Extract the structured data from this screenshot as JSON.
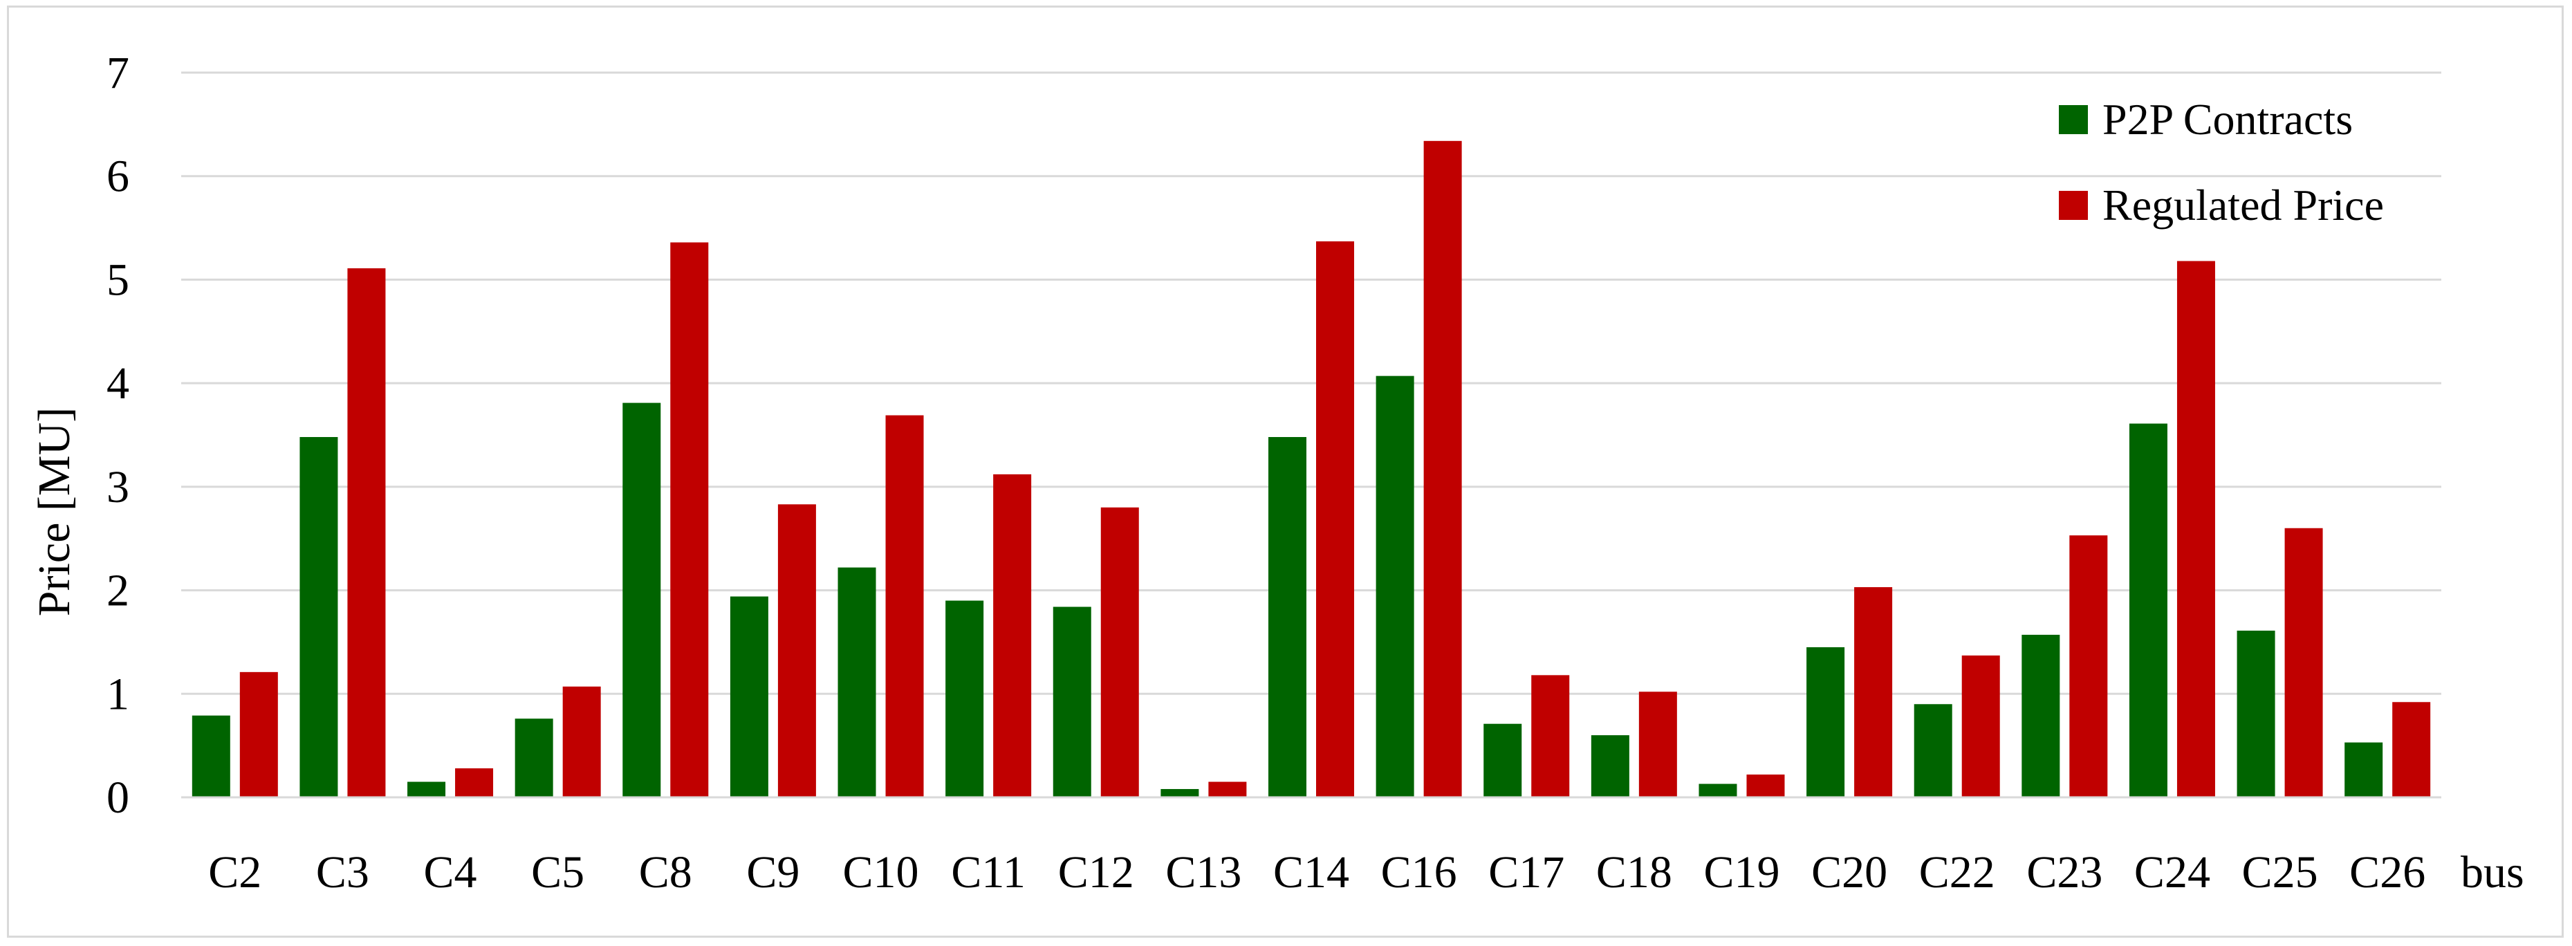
{
  "chart_data": {
    "type": "bar",
    "title": "",
    "xlabel": "bus",
    "ylabel": "Price [MU]",
    "ylim": [
      0,
      7
    ],
    "yticks": [
      "0",
      "1",
      "2",
      "3",
      "4",
      "5",
      "6",
      "7"
    ],
    "grid": "horizontal",
    "legend_position": "top-right",
    "categories": [
      "C2",
      "C3",
      "C4",
      "C5",
      "C8",
      "C9",
      "C10",
      "C11",
      "C12",
      "C13",
      "C14",
      "C16",
      "C17",
      "C18",
      "C19",
      "C20",
      "C22",
      "C23",
      "C24",
      "C25",
      "C26"
    ],
    "series": [
      {
        "name": "P2P Contracts",
        "color": "#006400",
        "values": [
          0.79,
          3.48,
          0.15,
          0.76,
          3.81,
          1.94,
          2.22,
          1.9,
          1.84,
          0.08,
          3.48,
          4.07,
          0.71,
          0.6,
          0.13,
          1.45,
          0.9,
          1.57,
          3.61,
          1.61,
          0.53
        ]
      },
      {
        "name": "Regulated Price",
        "color": "#c00000",
        "values": [
          1.21,
          5.11,
          0.28,
          1.07,
          5.36,
          2.83,
          3.69,
          3.12,
          2.8,
          0.15,
          5.37,
          6.34,
          1.18,
          1.02,
          0.22,
          2.03,
          1.37,
          2.53,
          5.18,
          2.6,
          0.92
        ]
      }
    ]
  }
}
